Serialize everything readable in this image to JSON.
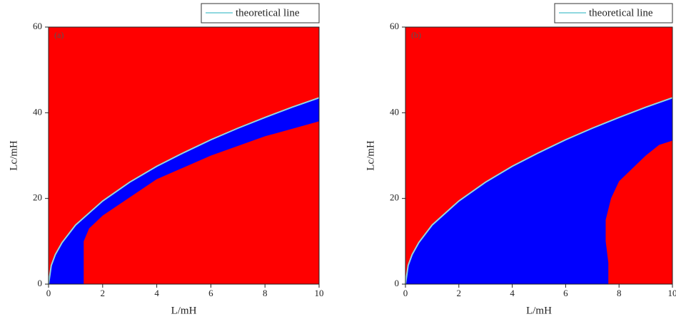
{
  "chart_data": [
    {
      "type": "line",
      "panel_label": "(a)",
      "xlabel": "L/mH",
      "ylabel": "Lc/mH",
      "xlim": [
        0,
        10
      ],
      "ylim": [
        0,
        60
      ],
      "xticks": [
        0,
        2,
        4,
        6,
        8,
        10
      ],
      "yticks": [
        0,
        20,
        40,
        60
      ],
      "plot_color": "#ff0000",
      "legend": "top-right",
      "regions": [
        {
          "color": "#0000ff",
          "x": [
            0,
            0.1,
            0.25,
            0.5,
            1,
            2,
            3,
            4,
            5,
            6,
            7,
            8,
            9,
            10,
            10,
            8,
            6,
            4,
            2,
            1.5,
            1.3,
            1.3
          ],
          "y": [
            0,
            4.35,
            6.9,
            9.7,
            13.8,
            19.4,
            23.8,
            27.5,
            30.7,
            33.7,
            36.4,
            38.9,
            41.3,
            43.5,
            38,
            34.5,
            30,
            24.5,
            16,
            13,
            10,
            0
          ]
        }
      ],
      "series": [
        {
          "name": "theoretical line",
          "color": "#8fd8df",
          "x": [
            0,
            0.1,
            0.25,
            0.5,
            1,
            2,
            3,
            4,
            5,
            6,
            7,
            8,
            9,
            10
          ],
          "values": [
            0,
            4.35,
            6.9,
            9.7,
            13.8,
            19.4,
            23.8,
            27.5,
            30.7,
            33.7,
            36.4,
            38.9,
            41.3,
            43.5
          ]
        }
      ]
    },
    {
      "type": "line",
      "panel_label": "(b)",
      "xlabel": "L/mH",
      "ylabel": "Lc/mH",
      "xlim": [
        0,
        10
      ],
      "ylim": [
        0,
        60
      ],
      "xticks": [
        0,
        2,
        4,
        6,
        8,
        10
      ],
      "yticks": [
        0,
        20,
        40,
        60
      ],
      "plot_color": "#ff0000",
      "legend": "top-right",
      "regions": [
        {
          "color": "#0000ff",
          "x": [
            0,
            0.1,
            0.25,
            0.5,
            1,
            2,
            3,
            4,
            5,
            6,
            7,
            8,
            9,
            10,
            10,
            9.5,
            9,
            8.5,
            8,
            7.7,
            7.5,
            7.5,
            7.6,
            7.6
          ],
          "y": [
            0,
            4.35,
            6.9,
            9.7,
            13.8,
            19.4,
            23.8,
            27.5,
            30.7,
            33.7,
            36.4,
            38.9,
            41.3,
            43.5,
            33.5,
            32.5,
            30,
            27,
            24,
            20,
            15,
            10,
            5,
            0
          ]
        }
      ],
      "series": [
        {
          "name": "theoretical line",
          "color": "#8fd8df",
          "x": [
            0,
            0.1,
            0.25,
            0.5,
            1,
            2,
            3,
            4,
            5,
            6,
            7,
            8,
            9,
            10
          ],
          "values": [
            0,
            4.35,
            6.9,
            9.7,
            13.8,
            19.4,
            23.8,
            27.5,
            30.7,
            33.7,
            36.4,
            38.9,
            41.3,
            43.5
          ]
        }
      ]
    }
  ]
}
